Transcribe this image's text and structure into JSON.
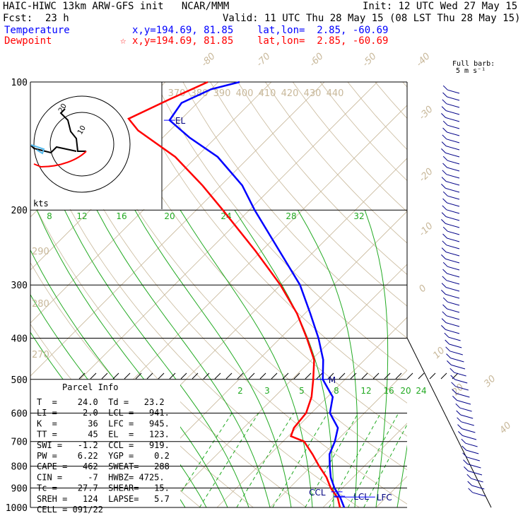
{
  "header": {
    "model": "HAIC-HIWC 13km ARW-GFS init   NCAR/MMM",
    "init": "Init: 12 UTC Wed 27 May 15",
    "fcst_label": "Fcst:",
    "fcst_value": "23 h",
    "valid": "Valid: 11 UTC Thu 28 May 15 (08 LST Thu 28 May 15)",
    "temperature_label": "Temperature",
    "temperature_loc": "x,y=194.69, 81.85    lat,lon=  2.85, -60.69",
    "dewpoint_label": "Dewpoint",
    "dewpoint_loc": "x,y=194.69, 81.85    lat,lon=  2.85, -60.69",
    "barb_legend": [
      "Full barb:",
      "5 m s⁻¹"
    ]
  },
  "colors": {
    "temperature": "#0000ff",
    "dewpoint": "#ff0000",
    "isotherm": "#c8b89a",
    "dry_adiabat": "#c8b89a",
    "mixing_ratio": "#22aa22",
    "hodograph_ring": "#000000",
    "wind_barbs": "#000088"
  },
  "chart_data": {
    "type": "line",
    "title": "HAIC-HIWC 13km ARW-GFS init",
    "pressure_levels": [
      100,
      200,
      300,
      400,
      500,
      600,
      700,
      800,
      900,
      1000
    ],
    "isotherm_labels": [
      -80,
      -70,
      -60,
      -50,
      -40,
      -30,
      -20,
      -10,
      0,
      10,
      20,
      30,
      40
    ],
    "theta_labels_top": [
      370,
      380,
      390,
      400,
      410,
      420,
      430,
      440
    ],
    "theta_labels_left": [
      290,
      280,
      270
    ],
    "mixing_ratio_labels_upper": [
      8,
      12,
      16,
      20,
      24,
      28,
      32
    ],
    "mixing_ratio_labels_lower": [
      2,
      3,
      5,
      8,
      12,
      16,
      20,
      24
    ],
    "series": [
      {
        "name": "Temperature",
        "color": "#0000ff",
        "points": [
          {
            "p": 1000,
            "t": 24.0
          },
          {
            "p": 950,
            "t": 21.5
          },
          {
            "p": 900,
            "t": 18.5
          },
          {
            "p": 850,
            "t": 15.8
          },
          {
            "p": 800,
            "t": 13.5
          },
          {
            "p": 750,
            "t": 11.2
          },
          {
            "p": 700,
            "t": 9.8
          },
          {
            "p": 650,
            "t": 7.8
          },
          {
            "p": 600,
            "t": 3.5
          },
          {
            "p": 550,
            "t": 1.0
          },
          {
            "p": 500,
            "t": -4.2
          },
          {
            "p": 450,
            "t": -7.8
          },
          {
            "p": 400,
            "t": -12.8
          },
          {
            "p": 350,
            "t": -19.0
          },
          {
            "p": 300,
            "t": -26.3
          },
          {
            "p": 250,
            "t": -36.5
          },
          {
            "p": 200,
            "t": -49.0
          },
          {
            "p": 175,
            "t": -56.0
          },
          {
            "p": 150,
            "t": -66.0
          },
          {
            "p": 135,
            "t": -75.0
          },
          {
            "p": 123,
            "t": -82.0
          },
          {
            "p": 112,
            "t": -83.0
          },
          {
            "p": 104,
            "t": -80.0
          },
          {
            "p": 100,
            "t": -76.0
          }
        ]
      },
      {
        "name": "Dewpoint",
        "color": "#ff0000",
        "points": [
          {
            "p": 1000,
            "t": 23.2
          },
          {
            "p": 950,
            "t": 21.0
          },
          {
            "p": 900,
            "t": 17.8
          },
          {
            "p": 850,
            "t": 15.0
          },
          {
            "p": 800,
            "t": 11.5
          },
          {
            "p": 750,
            "t": 8.0
          },
          {
            "p": 700,
            "t": 4.0
          },
          {
            "p": 680,
            "t": 0.5
          },
          {
            "p": 650,
            "t": -0.5
          },
          {
            "p": 600,
            "t": -1.0
          },
          {
            "p": 550,
            "t": -3.0
          },
          {
            "p": 500,
            "t": -6.0
          },
          {
            "p": 450,
            "t": -9.5
          },
          {
            "p": 400,
            "t": -15.0
          },
          {
            "p": 350,
            "t": -21.5
          },
          {
            "p": 300,
            "t": -30.0
          },
          {
            "p": 250,
            "t": -41.0
          },
          {
            "p": 200,
            "t": -55.0
          },
          {
            "p": 175,
            "t": -63.5
          },
          {
            "p": 150,
            "t": -74.0
          },
          {
            "p": 130,
            "t": -86.0
          },
          {
            "p": 122,
            "t": -90.0
          },
          {
            "p": 110,
            "t": -86.0
          },
          {
            "p": 100,
            "t": -82.0
          }
        ]
      }
    ],
    "level_markers": [
      {
        "label": "EL",
        "p": 123
      },
      {
        "label": "M",
        "p": 500
      },
      {
        "label": "CCL",
        "p": 919
      },
      {
        "label": "LCL",
        "p": 941
      },
      {
        "label": "LFC",
        "p": 945
      }
    ],
    "hodograph": {
      "axis_label": "kts",
      "ring_labels": [
        "10",
        "20"
      ]
    },
    "parcel_info": {
      "title": "Parcel Info",
      "rows": [
        "T  =    24.0  Td =   23.2",
        "LI =    -2.0  LCL =   941.",
        "K  =      36  LFC =   945.",
        "TT =      45  EL  =   123.",
        "SWI =   -1.2  CCL =   919.",
        "PW =    6.22  YGP =    0.2",
        "CAPE =   462  SWEAT=   288",
        "CIN =     -7  HWBZ= 4725.",
        "Tc =    27.7  SHEAR=   15.",
        "SREH =   124  LAPSE=   5.7",
        "CELL = 091/22"
      ]
    }
  }
}
